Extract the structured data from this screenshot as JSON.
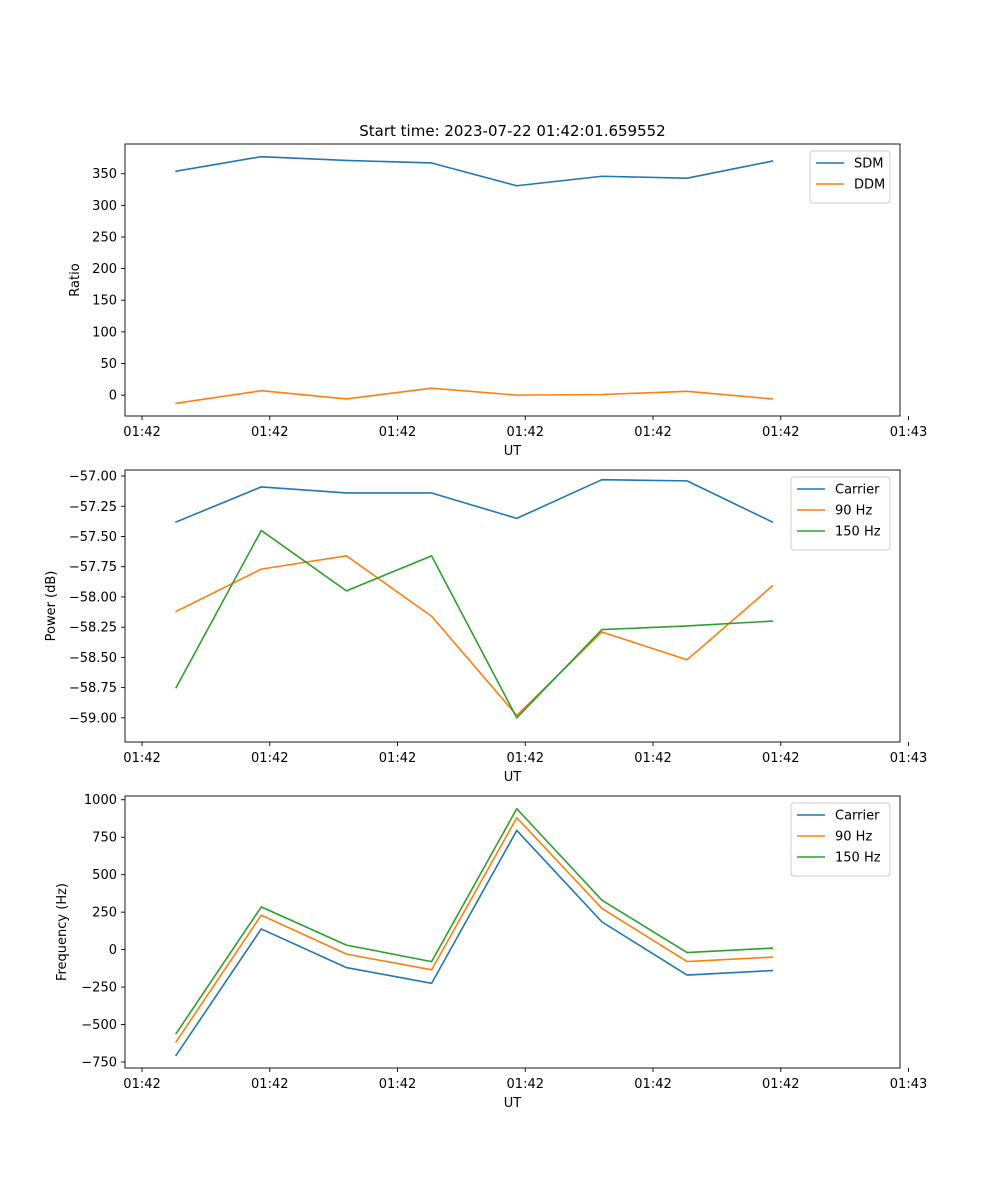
{
  "figure_title": "Start time: 2023-07-22 01:42:01.659552",
  "colors": {
    "blue": "#1f77b4",
    "orange": "#ff7f0e",
    "green": "#2ca02c"
  },
  "chart_data": [
    {
      "type": "line",
      "title": "Start time: 2023-07-22 01:42:01.659552",
      "xlabel": "UT",
      "ylabel": "Ratio",
      "xlim": [
        -0.6,
        8.5
      ],
      "x_ticks": [
        -0.4,
        1.1,
        2.6,
        4.1,
        5.6,
        7.1,
        8.6
      ],
      "x_tick_labels": [
        "01:42",
        "01:42",
        "01:42",
        "01:42",
        "01:42",
        "01:42",
        "01:43"
      ],
      "ylim": [
        -33,
        397
      ],
      "y_ticks": [
        0,
        50,
        100,
        150,
        200,
        250,
        300,
        350
      ],
      "y_tick_labels": [
        "0",
        "50",
        "100",
        "150",
        "200",
        "250",
        "300",
        "350"
      ],
      "legend_position": "top-right",
      "x": [
        0,
        1,
        2,
        3,
        4,
        5,
        6,
        7
      ],
      "series": [
        {
          "name": "SDM",
          "color": "#1f77b4",
          "values": [
            354,
            377,
            371,
            367,
            331,
            346,
            343,
            370
          ]
        },
        {
          "name": "DDM",
          "color": "#ff7f0e",
          "values": [
            -13,
            7,
            -6,
            11,
            0,
            1,
            6,
            -6
          ]
        }
      ]
    },
    {
      "type": "line",
      "title": "",
      "xlabel": "UT",
      "ylabel": "Power (dB)",
      "xlim": [
        -0.6,
        8.5
      ],
      "x_ticks": [
        -0.4,
        1.1,
        2.6,
        4.1,
        5.6,
        7.1,
        8.6
      ],
      "x_tick_labels": [
        "01:42",
        "01:42",
        "01:42",
        "01:42",
        "01:42",
        "01:42",
        "01:43"
      ],
      "ylim": [
        -59.2,
        -56.95
      ],
      "y_ticks": [
        -59.0,
        -58.75,
        -58.5,
        -58.25,
        -58.0,
        -57.75,
        -57.5,
        -57.25,
        -57.0
      ],
      "y_tick_labels": [
        "−59.00",
        "−58.75",
        "−58.50",
        "−58.25",
        "−58.00",
        "−57.75",
        "−57.50",
        "−57.25",
        "−57.00"
      ],
      "legend_position": "top-right",
      "x": [
        0,
        1,
        2,
        3,
        4,
        5,
        6,
        7
      ],
      "series": [
        {
          "name": "Carrier",
          "color": "#1f77b4",
          "values": [
            -57.38,
            -57.09,
            -57.14,
            -57.14,
            -57.35,
            -57.03,
            -57.04,
            -57.38
          ]
        },
        {
          "name": "90 Hz",
          "color": "#ff7f0e",
          "values": [
            -58.12,
            -57.77,
            -57.66,
            -58.16,
            -58.98,
            -58.29,
            -58.52,
            -57.91
          ]
        },
        {
          "name": "150 Hz",
          "color": "#2ca02c",
          "values": [
            -58.75,
            -57.45,
            -57.95,
            -57.66,
            -59.0,
            -58.27,
            -58.24,
            -58.2
          ]
        }
      ]
    },
    {
      "type": "line",
      "title": "",
      "xlabel": "UT",
      "ylabel": "Frequency (Hz)",
      "xlim": [
        -0.6,
        8.5
      ],
      "x_ticks": [
        -0.4,
        1.1,
        2.6,
        4.1,
        5.6,
        7.1,
        8.6
      ],
      "x_tick_labels": [
        "01:42",
        "01:42",
        "01:42",
        "01:42",
        "01:42",
        "01:42",
        "01:43"
      ],
      "ylim": [
        -790,
        1025
      ],
      "y_ticks": [
        -750,
        -500,
        -250,
        0,
        250,
        500,
        750,
        1000
      ],
      "y_tick_labels": [
        "−750",
        "−500",
        "−250",
        "0",
        "250",
        "500",
        "750",
        "1000"
      ],
      "legend_position": "top-right",
      "x": [
        0,
        1,
        2,
        3,
        4,
        5,
        6,
        7
      ],
      "series": [
        {
          "name": "Carrier",
          "color": "#1f77b4",
          "values": [
            -705,
            138,
            -120,
            -225,
            795,
            185,
            -170,
            -140
          ]
        },
        {
          "name": "90 Hz",
          "color": "#ff7f0e",
          "values": [
            -615,
            230,
            -30,
            -135,
            880,
            275,
            -80,
            -50
          ]
        },
        {
          "name": "150 Hz",
          "color": "#2ca02c",
          "values": [
            -560,
            285,
            30,
            -80,
            940,
            330,
            -20,
            10
          ]
        }
      ]
    }
  ]
}
